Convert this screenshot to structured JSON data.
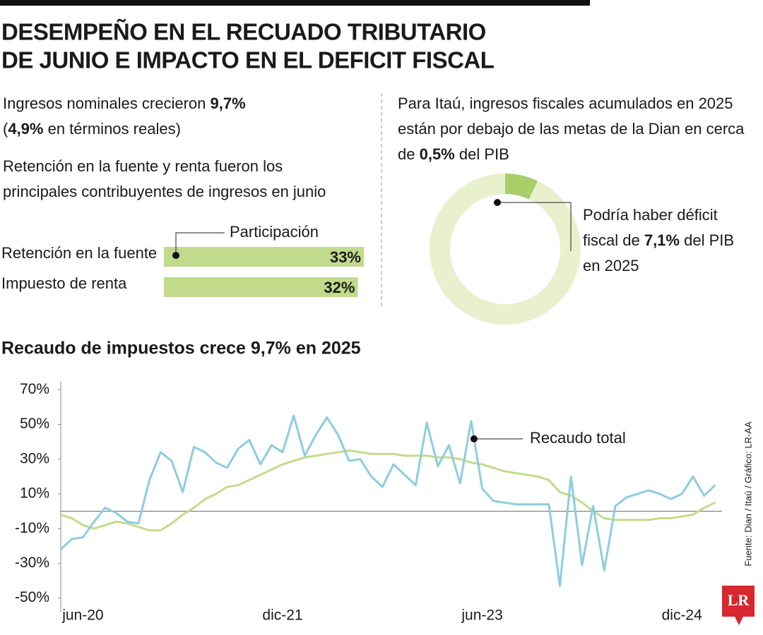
{
  "header": {
    "title": [
      "DESEMPEÑO EN EL RECUADO TRIBUTARIO",
      "DE JUNIO E IMPACTO EN EL DEFICIT FISCAL"
    ]
  },
  "left_notes": [
    [
      "Ingresos nominales crecieron ",
      "9,7%"
    ],
    [
      "(",
      "4,9%",
      " en términos reales)"
    ]
  ],
  "left_notes_2": [
    [
      "Retención en la fuente y renta fueron los"
    ],
    [
      "principales contribuyentes de ingresos en junio"
    ]
  ],
  "right_notes": [
    [
      "Para Itaú, ingresos fiscales acumulados en 2025"
    ],
    [
      "están por debajo de las metas de la Dian en cerca"
    ],
    [
      "de ",
      "0,5%",
      " del PIB"
    ]
  ],
  "donut_note": [
    [
      "Podría haber déficit"
    ],
    [
      "fiscal de ",
      "7,1%",
      " del PIB"
    ],
    [
      "en 2025"
    ]
  ],
  "source": "Fuente: Dian / Itaú / Gráfico: LR-AA",
  "logo": "LR",
  "chart_data": [
    {
      "type": "bar",
      "orientation": "horizontal",
      "series_name": "Participación",
      "categories": [
        "Retención en la fuente",
        "Impuesto de renta"
      ],
      "values": [
        33,
        32
      ],
      "value_labels": [
        "33%",
        "32%"
      ],
      "color": "#c1da8b",
      "xlim": [
        0,
        33
      ]
    },
    {
      "type": "pie",
      "values": [
        7.1,
        92.9
      ],
      "colors": [
        "#a8cf6a",
        "#e9f0cd"
      ]
    },
    {
      "type": "line",
      "title": "Recaudo de impuestos crece 9,7% en 2025",
      "categories": [
        null,
        null,
        "jun-20",
        null,
        null,
        null,
        null,
        null,
        null,
        null,
        null,
        null,
        null,
        null,
        null,
        null,
        null,
        null,
        null,
        null,
        "dic-21",
        null,
        null,
        null,
        null,
        null,
        null,
        null,
        null,
        null,
        null,
        null,
        null,
        null,
        null,
        null,
        null,
        null,
        "jun-23",
        null,
        null,
        null,
        null,
        null,
        null,
        null,
        null,
        null,
        null,
        null,
        null,
        null,
        null,
        null,
        null,
        null,
        "dic-24",
        null,
        null,
        null
      ],
      "series": [
        {
          "name": "Recaudo total",
          "color": "#8ccde0",
          "values": [
            -22,
            -16,
            -15,
            -6,
            2,
            -1,
            -6,
            -7,
            18,
            34,
            29,
            11,
            37,
            34,
            28,
            25,
            36,
            41,
            27,
            38,
            34,
            55,
            32,
            44,
            54,
            44,
            29,
            30,
            20,
            14,
            27,
            21,
            15,
            51,
            26,
            38,
            16,
            52,
            13,
            6,
            5,
            4,
            4,
            4,
            4,
            -43,
            20,
            -31,
            3,
            -34,
            3,
            8,
            10,
            12,
            10,
            7,
            10,
            20,
            9,
            15
          ]
        },
        {
          "color": "#c2dc8a",
          "values": [
            -2,
            -4,
            -8,
            -10,
            -8,
            -6,
            -7,
            -9,
            -11,
            -11,
            -7,
            -2,
            2,
            7,
            10,
            14,
            15,
            18,
            21,
            24,
            27,
            29,
            31,
            32,
            33,
            34,
            35,
            34,
            33,
            33,
            33,
            32,
            32,
            32,
            31,
            31,
            30,
            28,
            27,
            25,
            23,
            22,
            21,
            20,
            18,
            11,
            9,
            5,
            0,
            -4,
            -5,
            -5,
            -5,
            -5,
            -4,
            -4,
            -3,
            -2,
            2,
            5
          ]
        }
      ],
      "ylim": [
        -55,
        75
      ],
      "yticks": [
        {
          "value": 70,
          "label": "70%"
        },
        {
          "value": 50,
          "label": "50%"
        },
        {
          "value": 30,
          "label": "30%"
        },
        {
          "value": 10,
          "label": "10%"
        },
        {
          "value": -10,
          "label": "-10%"
        },
        {
          "value": -30,
          "label": "-30%"
        },
        {
          "value": -50,
          "label": "-50%"
        }
      ],
      "annotation_point": 37
    }
  ]
}
